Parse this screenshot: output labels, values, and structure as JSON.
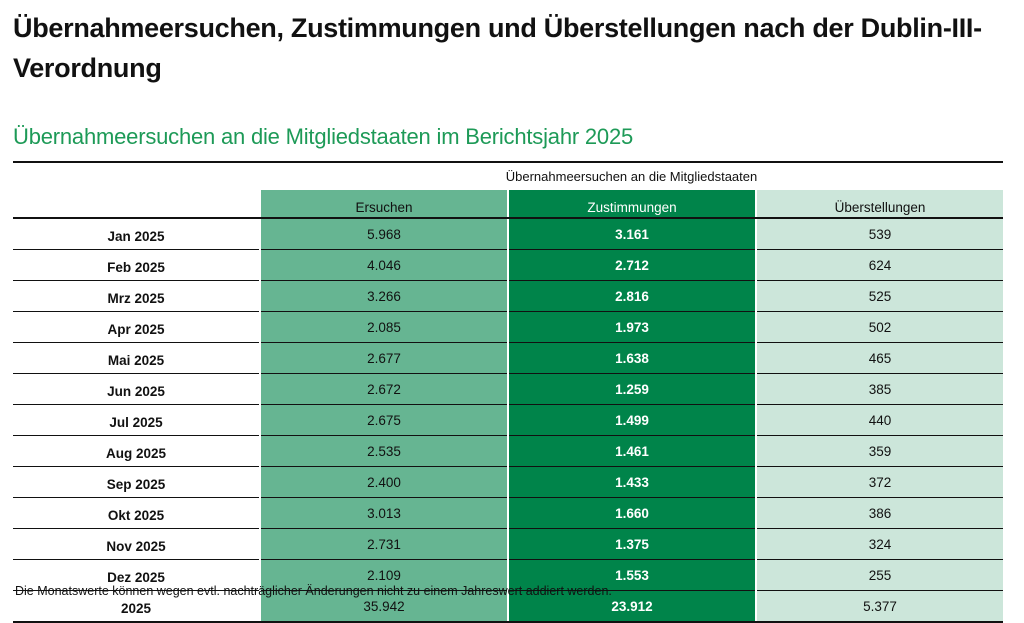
{
  "title": "Übernahmeersuchen, Zustimmungen und Überstellungen nach der Dublin-III-Verordnung",
  "subtitle": "Übernahmeersuchen an die Mitgliedstaaten im Berichtsjahr 2025",
  "table": {
    "group_header": "Übernahmeersuchen an die Mitgliedstaaten",
    "columns": [
      "Ersuchen",
      "Zustimmungen",
      "Überstellungen"
    ],
    "rows": [
      {
        "label": "Jan 2025",
        "ersuchen": "5.968",
        "zustimmungen": "3.161",
        "ueberstellungen": "539"
      },
      {
        "label": "Feb 2025",
        "ersuchen": "4.046",
        "zustimmungen": "2.712",
        "ueberstellungen": "624"
      },
      {
        "label": "Mrz 2025",
        "ersuchen": "3.266",
        "zustimmungen": "2.816",
        "ueberstellungen": "525"
      },
      {
        "label": "Apr 2025",
        "ersuchen": "2.085",
        "zustimmungen": "1.973",
        "ueberstellungen": "502"
      },
      {
        "label": "Mai 2025",
        "ersuchen": "2.677",
        "zustimmungen": "1.638",
        "ueberstellungen": "465"
      },
      {
        "label": "Jun 2025",
        "ersuchen": "2.672",
        "zustimmungen": "1.259",
        "ueberstellungen": "385"
      },
      {
        "label": "Jul 2025",
        "ersuchen": "2.675",
        "zustimmungen": "1.499",
        "ueberstellungen": "440"
      },
      {
        "label": "Aug 2025",
        "ersuchen": "2.535",
        "zustimmungen": "1.461",
        "ueberstellungen": "359"
      },
      {
        "label": "Sep 2025",
        "ersuchen": "2.400",
        "zustimmungen": "1.433",
        "ueberstellungen": "372"
      },
      {
        "label": "Okt 2025",
        "ersuchen": "3.013",
        "zustimmungen": "1.660",
        "ueberstellungen": "386"
      },
      {
        "label": "Nov 2025",
        "ersuchen": "2.731",
        "zustimmungen": "1.375",
        "ueberstellungen": "324"
      },
      {
        "label": "Dez 2025",
        "ersuchen": "2.109",
        "zustimmungen": "1.553",
        "ueberstellungen": "255"
      }
    ],
    "total": {
      "label": "2025",
      "ersuchen": "35.942",
      "zustimmungen": "23.912",
      "ueberstellungen": "5.377"
    }
  },
  "footnote": "Die Monatswerte können wegen evtl. nachträglicher Änderungen nicht zu einem Jahreswert addiert werden.",
  "colors": {
    "ersuchen": "#66b592",
    "zustimmungen": "#00844a",
    "ueberstellungen": "#cce6da",
    "subtitle": "#1d9a57"
  }
}
